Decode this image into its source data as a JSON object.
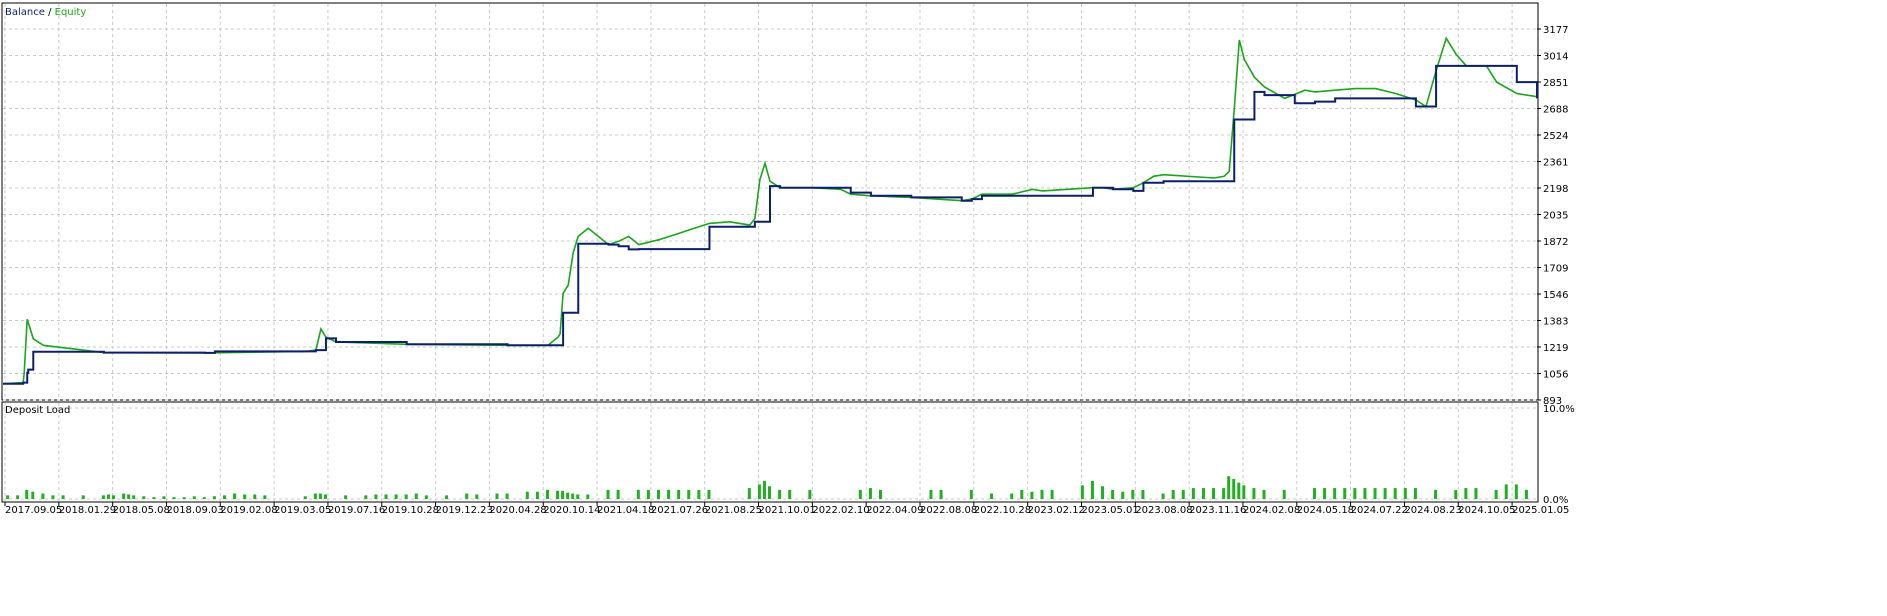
{
  "legend": {
    "balance": "Balance",
    "separator": " / ",
    "equity": "Equity"
  },
  "colors": {
    "balance": "#0b1f6e",
    "equity": "#1aa61a",
    "load": "#20b020",
    "grid": "#c8c8c8",
    "frame": "#000000"
  },
  "chart_data": [
    {
      "type": "line",
      "ylim": [
        893,
        3177
      ],
      "y_ticks": [
        "3177",
        "3014",
        "2851",
        "2688",
        "2524",
        "2361",
        "2198",
        "2035",
        "1872",
        "1709",
        "1546",
        "1383",
        "1219",
        "1056",
        "893"
      ],
      "x_ticks": [
        "2017.09.05",
        "2018.01.29",
        "2018.05.08",
        "2018.09.03",
        "2019.02.08",
        "2019.03.05",
        "2019.07.16",
        "2019.10.28",
        "2019.12.23",
        "2020.04.28",
        "2020.10.14",
        "2021.04.18",
        "2021.07.26",
        "2021.08.25",
        "2021.10.01",
        "2022.02.10",
        "2022.04.09",
        "2022.08.08",
        "2022.10.28",
        "2023.02.12",
        "2023.05.01",
        "2023.08.08",
        "2023.11.16",
        "2024.02.08",
        "2024.05.18",
        "2024.07.22",
        "2024.08.23",
        "2024.10.05",
        "2025.01.05"
      ],
      "series": [
        {
          "name": "Balance",
          "x": [
            0,
            0.02,
            0.021,
            0.024,
            0.025,
            0.03,
            0.1,
            0.2,
            0.21,
            0.3,
            0.31,
            0.32,
            0.33,
            0.4,
            0.5,
            0.55,
            0.555,
            0.56,
            0.57,
            0.6,
            0.61,
            0.62,
            0.63,
            0.68,
            0.7,
            0.72,
            0.74,
            0.745,
            0.76,
            0.77,
            0.8,
            0.83,
            0.84,
            0.86,
            0.9,
            0.95,
            0.96,
            0.97,
            1.0,
            1.02,
            1.08,
            1.1,
            1.12,
            1.13,
            1.15,
            1.2,
            1.22,
            1.24,
            1.25,
            1.28,
            1.3,
            1.32,
            1.35,
            1.4,
            1.42,
            1.48,
            1.5,
            1.52
          ],
          "values": [
            993,
            1000,
            1000,
            1060,
            1080,
            1190,
            1185,
            1183,
            1192,
            1192,
            1200,
            1272,
            1250,
            1236,
            1230,
            1230,
            1430,
            1430,
            1855,
            1850,
            1840,
            1820,
            1822,
            1822,
            1960,
            1960,
            1960,
            1990,
            2210,
            2200,
            2200,
            2200,
            2170,
            2150,
            2140,
            2120,
            2130,
            2150,
            2150,
            2150,
            2200,
            2190,
            2180,
            2230,
            2240,
            2240,
            2620,
            2790,
            2770,
            2720,
            2730,
            2750,
            2750,
            2700,
            2950,
            2950,
            2850,
            2750
          ]
        },
        {
          "name": "Equity",
          "x": [
            0,
            0.02,
            0.021,
            0.024,
            0.03,
            0.04,
            0.1,
            0.2,
            0.3,
            0.31,
            0.315,
            0.32,
            0.33,
            0.4,
            0.5,
            0.54,
            0.55,
            0.552,
            0.555,
            0.56,
            0.565,
            0.57,
            0.58,
            0.6,
            0.61,
            0.62,
            0.63,
            0.65,
            0.67,
            0.68,
            0.7,
            0.72,
            0.74,
            0.745,
            0.75,
            0.755,
            0.76,
            0.77,
            0.8,
            0.83,
            0.84,
            0.86,
            0.9,
            0.95,
            0.96,
            0.97,
            1.0,
            1.02,
            1.03,
            1.08,
            1.09,
            1.1,
            1.12,
            1.13,
            1.14,
            1.15,
            1.2,
            1.21,
            1.215,
            1.22,
            1.225,
            1.23,
            1.24,
            1.25,
            1.27,
            1.29,
            1.3,
            1.32,
            1.34,
            1.36,
            1.38,
            1.4,
            1.41,
            1.42,
            1.43,
            1.44,
            1.45,
            1.47,
            1.48,
            1.5,
            1.52
          ],
          "values": [
            993,
            1000,
            1060,
            1390,
            1270,
            1230,
            1185,
            1183,
            1192,
            1200,
            1330,
            1280,
            1250,
            1236,
            1230,
            1230,
            1280,
            1300,
            1550,
            1600,
            1800,
            1900,
            1950,
            1850,
            1870,
            1900,
            1850,
            1880,
            1920,
            1940,
            1980,
            1990,
            1970,
            2010,
            2250,
            2350,
            2240,
            2200,
            2200,
            2190,
            2160,
            2150,
            2140,
            2120,
            2130,
            2160,
            2160,
            2190,
            2180,
            2200,
            2200,
            2190,
            2200,
            2230,
            2270,
            2280,
            2260,
            2270,
            2300,
            2680,
            3110,
            2990,
            2880,
            2820,
            2750,
            2800,
            2790,
            2800,
            2810,
            2810,
            2780,
            2740,
            2700,
            2920,
            3120,
            3020,
            2950,
            2950,
            2850,
            2780,
            2760
          ]
        }
      ]
    },
    {
      "type": "bar",
      "ylim": [
        0,
        10
      ],
      "y_ticks": [
        "10.0%",
        "0.0%"
      ],
      "title": "Deposit Load",
      "x": [
        0.005,
        0.015,
        0.024,
        0.03,
        0.04,
        0.05,
        0.06,
        0.08,
        0.1,
        0.105,
        0.11,
        0.12,
        0.125,
        0.13,
        0.14,
        0.15,
        0.16,
        0.17,
        0.18,
        0.19,
        0.2,
        0.21,
        0.22,
        0.23,
        0.24,
        0.25,
        0.26,
        0.3,
        0.31,
        0.315,
        0.32,
        0.34,
        0.36,
        0.37,
        0.38,
        0.39,
        0.4,
        0.41,
        0.42,
        0.44,
        0.46,
        0.47,
        0.49,
        0.5,
        0.52,
        0.53,
        0.54,
        0.55,
        0.555,
        0.56,
        0.565,
        0.57,
        0.58,
        0.6,
        0.61,
        0.63,
        0.64,
        0.65,
        0.66,
        0.67,
        0.68,
        0.69,
        0.7,
        0.74,
        0.75,
        0.755,
        0.76,
        0.77,
        0.78,
        0.8,
        0.85,
        0.86,
        0.87,
        0.92,
        0.93,
        0.96,
        0.98,
        1.0,
        1.01,
        1.02,
        1.03,
        1.04,
        1.07,
        1.08,
        1.09,
        1.1,
        1.11,
        1.12,
        1.13,
        1.15,
        1.16,
        1.17,
        1.18,
        1.19,
        1.2,
        1.21,
        1.215,
        1.22,
        1.225,
        1.23,
        1.24,
        1.25,
        1.27,
        1.3,
        1.31,
        1.32,
        1.33,
        1.34,
        1.35,
        1.36,
        1.37,
        1.38,
        1.39,
        1.4,
        1.42,
        1.44,
        1.45,
        1.46,
        1.48,
        1.49,
        1.5,
        1.51
      ],
      "values": [
        0.4,
        0.4,
        1.0,
        0.8,
        0.6,
        0.4,
        0.4,
        0.4,
        0.4,
        0.5,
        0.4,
        0.6,
        0.5,
        0.4,
        0.3,
        0.2,
        0.3,
        0.2,
        0.2,
        0.3,
        0.2,
        0.3,
        0.4,
        0.6,
        0.5,
        0.5,
        0.4,
        0.3,
        0.6,
        0.6,
        0.5,
        0.4,
        0.4,
        0.5,
        0.5,
        0.5,
        0.5,
        0.6,
        0.4,
        0.4,
        0.6,
        0.5,
        0.6,
        0.6,
        0.8,
        0.8,
        1.0,
        0.9,
        0.9,
        0.7,
        0.6,
        0.5,
        0.5,
        1.0,
        1.0,
        1.0,
        1.0,
        1.0,
        1.0,
        1.0,
        1.0,
        1.0,
        1.0,
        1.2,
        1.6,
        2.0,
        1.4,
        1.0,
        1.0,
        1.0,
        1.0,
        1.2,
        1.0,
        1.0,
        1.0,
        1.0,
        0.6,
        0.6,
        1.0,
        0.8,
        1.0,
        1.0,
        1.5,
        2.0,
        1.4,
        1.0,
        0.8,
        1.0,
        1.0,
        0.6,
        1.0,
        1.0,
        1.2,
        1.2,
        1.2,
        1.2,
        2.5,
        2.2,
        1.8,
        1.5,
        1.2,
        1.0,
        1.0,
        1.2,
        1.2,
        1.2,
        1.2,
        1.2,
        1.2,
        1.2,
        1.2,
        1.2,
        1.2,
        1.2,
        1.0,
        1.0,
        1.2,
        1.2,
        1.0,
        1.6,
        1.6,
        1.0
      ]
    }
  ]
}
